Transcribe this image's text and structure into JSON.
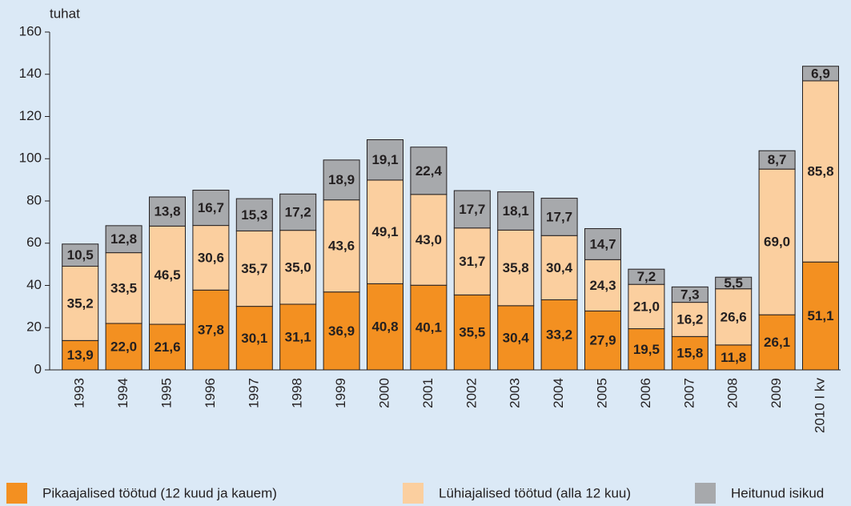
{
  "chart_data": {
    "type": "stacked_bar",
    "y_label": "tuhat",
    "categories": [
      "1993",
      "1994",
      "1995",
      "1996",
      "1997",
      "1998",
      "1999",
      "2000",
      "2001",
      "2002",
      "2003",
      "2004",
      "2005",
      "2006",
      "2007",
      "2008",
      "2009",
      "2010 I kv"
    ],
    "series": [
      {
        "name": "Pikaajalised töötud (12 kuud ja kauem)",
        "color": "#f39021",
        "values": [
          13.9,
          22.0,
          21.6,
          37.8,
          30.1,
          31.1,
          36.9,
          40.8,
          40.1,
          35.5,
          30.4,
          33.2,
          27.9,
          19.5,
          15.8,
          11.8,
          26.1,
          51.1
        ],
        "value_labels": [
          "13,9",
          "22,0",
          "21,6",
          "37,8",
          "30,1",
          "31,1",
          "36,9",
          "40,8",
          "40,1",
          "35,5",
          "30,4",
          "33,2",
          "27,9",
          "19,5",
          "15,8",
          "11,8",
          "26,1",
          "51,1"
        ]
      },
      {
        "name": "Lühiajalised töötud (alla 12 kuu)",
        "color": "#fbcf9f",
        "values": [
          35.2,
          33.5,
          46.5,
          30.6,
          35.7,
          35.0,
          43.6,
          49.1,
          43.0,
          31.7,
          35.8,
          30.4,
          24.3,
          21.0,
          16.2,
          26.6,
          69.0,
          85.8
        ],
        "value_labels": [
          "35,2",
          "33,5",
          "46,5",
          "30,6",
          "35,7",
          "35,0",
          "43,6",
          "49,1",
          "43,0",
          "31,7",
          "35,8",
          "30,4",
          "24,3",
          "21,0",
          "16,2",
          "26,6",
          "69,0",
          "85,8"
        ]
      },
      {
        "name": "Heitunud isikud",
        "color": "#a7a9ac",
        "values": [
          10.5,
          12.8,
          13.8,
          16.7,
          15.3,
          17.2,
          18.9,
          19.1,
          22.4,
          17.7,
          18.1,
          17.7,
          14.7,
          7.2,
          7.3,
          5.5,
          8.7,
          6.9
        ],
        "value_labels": [
          "10,5",
          "12,8",
          "13,8",
          "16,7",
          "15,3",
          "17,2",
          "18,9",
          "19,1",
          "22,4",
          "17,7",
          "18,1",
          "17,7",
          "14,7",
          "7,2",
          "7,3",
          "5,5",
          "8,7",
          "6,9"
        ]
      }
    ],
    "ylim": [
      0,
      160
    ],
    "yticks": [
      0,
      20,
      40,
      60,
      80,
      100,
      120,
      140,
      160
    ]
  }
}
